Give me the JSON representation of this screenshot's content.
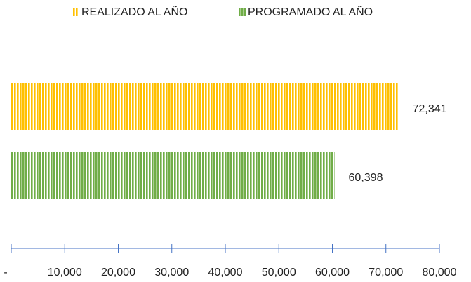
{
  "chart_data": {
    "type": "bar",
    "orientation": "horizontal",
    "categories": [
      null
    ],
    "series": [
      {
        "name": "REALIZADO AL AÑO",
        "color": "#ffc000",
        "values": [
          72341
        ],
        "value_labels": [
          "72,341"
        ]
      },
      {
        "name": "PROGRAMADO AL AÑO",
        "color": "#70ad47",
        "values": [
          60398
        ],
        "value_labels": [
          "60,398"
        ]
      }
    ],
    "xlim": [
      0,
      80000
    ],
    "xticks": [
      {
        "value": 0,
        "label": "-"
      },
      {
        "value": 10000,
        "label": "10,000"
      },
      {
        "value": 20000,
        "label": "20,000"
      },
      {
        "value": 30000,
        "label": "30,000"
      },
      {
        "value": 40000,
        "label": "40,000"
      },
      {
        "value": 50000,
        "label": "50,000"
      },
      {
        "value": 60000,
        "label": "60,000"
      },
      {
        "value": 70000,
        "label": "70,000"
      },
      {
        "value": 80000,
        "label": "80,000"
      }
    ],
    "axis_color": "#4472c4",
    "legend": "top"
  }
}
